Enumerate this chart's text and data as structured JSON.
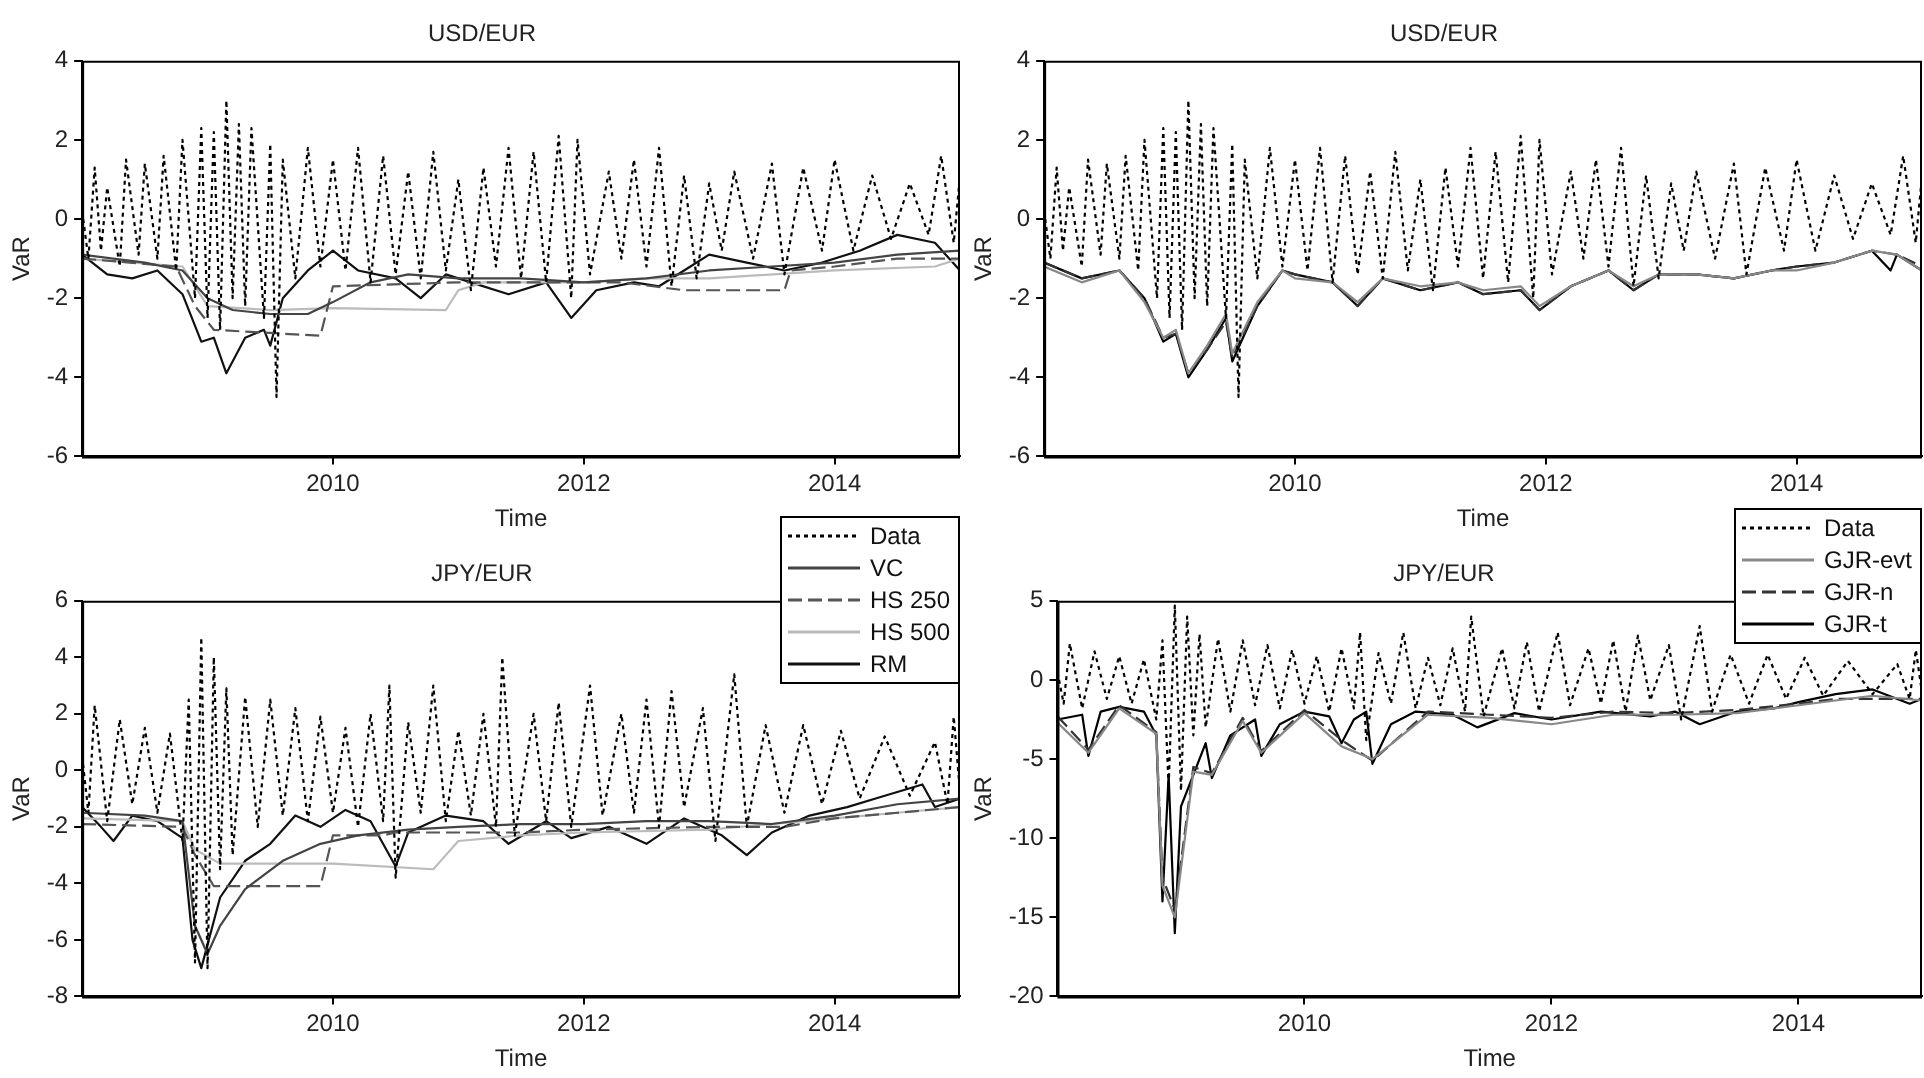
{
  "chart_data": [
    {
      "type": "line",
      "title": "USD/EUR",
      "xlabel": "Time",
      "ylabel": "VaR",
      "xlim": [
        2008,
        2015
      ],
      "xticks": [
        2010,
        2012,
        2014
      ],
      "ylim": [
        -6,
        4
      ],
      "yticks": [
        -6,
        -4,
        -2,
        0,
        2,
        4
      ],
      "grid": false,
      "legend": false,
      "marker": "none",
      "series": [
        {
          "color": "#000000",
          "line_style": "dotted",
          "x": [
            2008.0,
            2008.05,
            2008.1,
            2008.15,
            2008.2,
            2008.3,
            2008.35,
            2008.45,
            2008.5,
            2008.6,
            2008.65,
            2008.75,
            2008.8,
            2008.9,
            2008.95,
            2009.0,
            2009.05,
            2009.1,
            2009.15,
            2009.2,
            2009.25,
            2009.3,
            2009.35,
            2009.45,
            2009.5,
            2009.55,
            2009.6,
            2009.7,
            2009.8,
            2009.9,
            2010.0,
            2010.1,
            2010.2,
            2010.3,
            2010.4,
            2010.5,
            2010.6,
            2010.7,
            2010.8,
            2010.9,
            2011.0,
            2011.1,
            2011.2,
            2011.3,
            2011.4,
            2011.5,
            2011.6,
            2011.7,
            2011.8,
            2011.9,
            2011.95,
            2012.05,
            2012.2,
            2012.3,
            2012.4,
            2012.5,
            2012.6,
            2012.7,
            2012.8,
            2012.9,
            2013.0,
            2013.1,
            2013.2,
            2013.35,
            2013.5,
            2013.6,
            2013.75,
            2013.9,
            2014.0,
            2014.15,
            2014.3,
            2014.45,
            2014.6,
            2014.75,
            2014.85,
            2014.95,
            2015.0
          ],
          "values": [
            0.2,
            -1.0,
            1.3,
            -0.8,
            0.8,
            -1.2,
            1.5,
            -0.9,
            1.4,
            -1.0,
            1.6,
            -1.3,
            2.0,
            -2.0,
            2.3,
            -2.5,
            2.2,
            -2.8,
            3.0,
            -2.0,
            2.4,
            -2.2,
            2.3,
            -2.5,
            1.9,
            -4.5,
            1.5,
            -1.5,
            1.8,
            -1.2,
            1.5,
            -1.3,
            1.8,
            -1.6,
            1.6,
            -1.4,
            1.2,
            -1.5,
            1.7,
            -1.3,
            1.0,
            -1.8,
            1.3,
            -1.2,
            1.8,
            -1.5,
            1.7,
            -1.6,
            2.1,
            -2.0,
            2.0,
            -1.4,
            1.2,
            -1.0,
            1.5,
            -1.2,
            1.8,
            -1.7,
            1.1,
            -1.5,
            0.9,
            -0.8,
            1.2,
            -1.0,
            1.4,
            -1.4,
            1.3,
            -0.8,
            1.5,
            -0.8,
            1.1,
            -0.5,
            0.9,
            -0.4,
            1.6,
            -0.6,
            1.1
          ]
        },
        {
          "color": "#444444",
          "line_style": "solid",
          "x": [
            2008.0,
            2008.5,
            2008.8,
            2009.0,
            2009.2,
            2009.5,
            2009.8,
            2010.0,
            2010.3,
            2010.6,
            2011.0,
            2011.5,
            2012.0,
            2012.5,
            2013.0,
            2013.5,
            2014.0,
            2014.5,
            2015.0
          ],
          "values": [
            -0.9,
            -1.1,
            -1.3,
            -2.0,
            -2.3,
            -2.4,
            -2.4,
            -2.1,
            -1.6,
            -1.4,
            -1.5,
            -1.5,
            -1.6,
            -1.5,
            -1.3,
            -1.2,
            -1.1,
            -0.9,
            -0.8
          ]
        },
        {
          "color": "#555555",
          "line_style": "dashed",
          "x": [
            2008.0,
            2008.75,
            2008.9,
            2009.05,
            2009.9,
            2010.0,
            2011.0,
            2012.3,
            2012.8,
            2013.6,
            2013.65,
            2014.0,
            2014.5,
            2015.0
          ],
          "values": [
            -1.0,
            -1.2,
            -2.2,
            -2.8,
            -2.95,
            -1.7,
            -1.6,
            -1.6,
            -1.8,
            -1.8,
            -1.3,
            -1.2,
            -1.0,
            -1.0
          ]
        },
        {
          "color": "#bbbbbb",
          "line_style": "solid",
          "x": [
            2008.0,
            2008.8,
            2009.0,
            2009.5,
            2010.0,
            2010.9,
            2011.0,
            2011.2,
            2012.0,
            2012.5,
            2013.0,
            2014.0,
            2014.8,
            2015.0
          ],
          "values": [
            -1.0,
            -1.2,
            -2.2,
            -2.3,
            -2.25,
            -2.3,
            -1.8,
            -1.6,
            -1.6,
            -1.5,
            -1.5,
            -1.3,
            -1.2,
            -1.0
          ]
        },
        {
          "color": "#111111",
          "line_style": "solid",
          "x": [
            2008.0,
            2008.2,
            2008.4,
            2008.6,
            2008.8,
            2008.95,
            2009.05,
            2009.15,
            2009.3,
            2009.45,
            2009.5,
            2009.6,
            2009.8,
            2010.0,
            2010.2,
            2010.5,
            2010.7,
            2010.9,
            2011.1,
            2011.4,
            2011.7,
            2011.9,
            2012.1,
            2012.4,
            2012.6,
            2012.8,
            2013.0,
            2013.3,
            2013.6,
            2013.9,
            2014.2,
            2014.5,
            2014.8,
            2015.0
          ],
          "values": [
            -0.9,
            -1.4,
            -1.5,
            -1.3,
            -1.9,
            -3.1,
            -3.0,
            -3.9,
            -3.0,
            -2.8,
            -3.2,
            -2.0,
            -1.3,
            -0.8,
            -1.3,
            -1.5,
            -2.0,
            -1.4,
            -1.6,
            -1.9,
            -1.6,
            -2.5,
            -1.8,
            -1.6,
            -1.7,
            -1.3,
            -0.9,
            -1.1,
            -1.3,
            -1.1,
            -0.8,
            -0.4,
            -0.6,
            -1.3
          ]
        }
      ]
    },
    {
      "type": "line",
      "title": "USD/EUR",
      "xlabel": "Time",
      "ylabel": "VaR",
      "xlim": [
        2008,
        2015
      ],
      "xticks": [
        2010,
        2012,
        2014
      ],
      "ylim": [
        -6,
        4
      ],
      "yticks": [
        -6,
        -4,
        -2,
        0,
        2,
        4
      ],
      "grid": false,
      "legend": false,
      "marker": "none",
      "series": [
        {
          "color": "#000000",
          "line_style": "dotted",
          "x": [
            2008.0,
            2008.05,
            2008.1,
            2008.15,
            2008.2,
            2008.3,
            2008.35,
            2008.45,
            2008.5,
            2008.6,
            2008.65,
            2008.75,
            2008.8,
            2008.9,
            2008.95,
            2009.0,
            2009.05,
            2009.1,
            2009.15,
            2009.2,
            2009.25,
            2009.3,
            2009.35,
            2009.45,
            2009.5,
            2009.55,
            2009.6,
            2009.7,
            2009.8,
            2009.9,
            2010.0,
            2010.1,
            2010.2,
            2010.3,
            2010.4,
            2010.5,
            2010.6,
            2010.7,
            2010.8,
            2010.9,
            2011.0,
            2011.1,
            2011.2,
            2011.3,
            2011.4,
            2011.5,
            2011.6,
            2011.7,
            2011.8,
            2011.9,
            2011.95,
            2012.05,
            2012.2,
            2012.3,
            2012.4,
            2012.5,
            2012.6,
            2012.7,
            2012.8,
            2012.9,
            2013.0,
            2013.1,
            2013.2,
            2013.35,
            2013.5,
            2013.6,
            2013.75,
            2013.9,
            2014.0,
            2014.15,
            2014.3,
            2014.45,
            2014.6,
            2014.75,
            2014.85,
            2014.95,
            2015.0
          ],
          "values": [
            0.2,
            -1.0,
            1.3,
            -0.8,
            0.8,
            -1.2,
            1.5,
            -0.9,
            1.4,
            -1.0,
            1.6,
            -1.3,
            2.0,
            -2.0,
            2.3,
            -2.5,
            2.2,
            -2.8,
            3.0,
            -2.0,
            2.4,
            -2.2,
            2.3,
            -2.5,
            1.9,
            -4.5,
            1.5,
            -1.5,
            1.8,
            -1.2,
            1.5,
            -1.3,
            1.8,
            -1.6,
            1.6,
            -1.4,
            1.2,
            -1.5,
            1.7,
            -1.3,
            1.0,
            -1.8,
            1.3,
            -1.2,
            1.8,
            -1.5,
            1.7,
            -1.6,
            2.1,
            -2.0,
            2.0,
            -1.4,
            1.2,
            -1.0,
            1.5,
            -1.2,
            1.8,
            -1.7,
            1.1,
            -1.5,
            0.9,
            -0.8,
            1.2,
            -1.0,
            1.4,
            -1.4,
            1.3,
            -0.8,
            1.5,
            -0.8,
            1.1,
            -0.5,
            0.9,
            -0.4,
            1.6,
            -0.6,
            1.1
          ]
        },
        {
          "color": "#888888",
          "line_style": "solid",
          "x": [
            2008.0,
            2008.3,
            2008.6,
            2008.8,
            2008.95,
            2009.05,
            2009.15,
            2009.3,
            2009.45,
            2009.5,
            2009.7,
            2009.9,
            2010.0,
            2010.3,
            2010.5,
            2010.7,
            2011.0,
            2011.3,
            2011.5,
            2011.8,
            2011.95,
            2012.2,
            2012.5,
            2012.7,
            2012.9,
            2013.2,
            2013.5,
            2013.8,
            2014.0,
            2014.3,
            2014.6,
            2014.8,
            2015.0
          ],
          "values": [
            -1.2,
            -1.6,
            -1.3,
            -2.1,
            -3.0,
            -2.8,
            -3.9,
            -3.2,
            -2.4,
            -3.4,
            -2.1,
            -1.3,
            -1.5,
            -1.6,
            -2.1,
            -1.5,
            -1.7,
            -1.6,
            -1.8,
            -1.7,
            -2.2,
            -1.7,
            -1.3,
            -1.7,
            -1.4,
            -1.4,
            -1.5,
            -1.3,
            -1.3,
            -1.1,
            -0.8,
            -0.9,
            -1.3
          ]
        },
        {
          "color": "#333333",
          "line_style": "dashed",
          "x": [
            2008.0,
            2008.3,
            2008.6,
            2008.8,
            2008.95,
            2009.05,
            2009.15,
            2009.3,
            2009.45,
            2009.5,
            2009.7,
            2009.9,
            2010.0,
            2010.3,
            2010.5,
            2010.7,
            2011.0,
            2011.3,
            2011.5,
            2011.8,
            2011.95,
            2012.2,
            2012.5,
            2012.7,
            2012.9,
            2013.2,
            2013.5,
            2013.8,
            2014.0,
            2014.3,
            2014.6,
            2014.8,
            2015.0
          ],
          "values": [
            -1.1,
            -1.5,
            -1.3,
            -2.0,
            -3.0,
            -2.9,
            -3.9,
            -3.3,
            -2.6,
            -3.5,
            -2.2,
            -1.3,
            -1.4,
            -1.6,
            -2.2,
            -1.5,
            -1.8,
            -1.6,
            -1.9,
            -1.8,
            -2.3,
            -1.7,
            -1.3,
            -1.8,
            -1.4,
            -1.4,
            -1.5,
            -1.3,
            -1.2,
            -1.1,
            -0.8,
            -0.9,
            -1.2
          ]
        },
        {
          "color": "#000000",
          "line_style": "solid",
          "x": [
            2008.0,
            2008.3,
            2008.6,
            2008.8,
            2008.95,
            2009.05,
            2009.15,
            2009.3,
            2009.45,
            2009.5,
            2009.7,
            2009.9,
            2010.0,
            2010.3,
            2010.5,
            2010.7,
            2011.0,
            2011.3,
            2011.5,
            2011.8,
            2011.95,
            2012.2,
            2012.5,
            2012.7,
            2012.9,
            2013.2,
            2013.5,
            2013.8,
            2014.0,
            2014.3,
            2014.6,
            2014.75,
            2014.8,
            2015.0
          ],
          "values": [
            -1.1,
            -1.5,
            -1.3,
            -2.0,
            -3.1,
            -2.9,
            -4.0,
            -3.3,
            -2.5,
            -3.6,
            -2.2,
            -1.3,
            -1.4,
            -1.6,
            -2.2,
            -1.5,
            -1.8,
            -1.6,
            -1.9,
            -1.8,
            -2.3,
            -1.7,
            -1.3,
            -1.8,
            -1.4,
            -1.4,
            -1.5,
            -1.3,
            -1.2,
            -1.1,
            -0.8,
            -1.3,
            -0.9,
            -1.3
          ]
        }
      ]
    },
    {
      "type": "line",
      "title": "JPY/EUR",
      "xlabel": "Time",
      "ylabel": "VaR",
      "xlim": [
        2008,
        2015
      ],
      "xticks": [
        2010,
        2012,
        2014
      ],
      "ylim": [
        -8,
        6
      ],
      "yticks": [
        -8,
        -6,
        -4,
        -2,
        0,
        2,
        4,
        6
      ],
      "grid": false,
      "legend": "top right",
      "marker": "none",
      "series": [
        {
          "name": "Data",
          "color": "#000000",
          "line_style": "dotted",
          "x": [
            2008.0,
            2008.05,
            2008.1,
            2008.2,
            2008.3,
            2008.4,
            2008.5,
            2008.6,
            2008.7,
            2008.8,
            2008.85,
            2008.9,
            2008.95,
            2009.0,
            2009.05,
            2009.1,
            2009.15,
            2009.2,
            2009.3,
            2009.4,
            2009.5,
            2009.6,
            2009.7,
            2009.8,
            2009.9,
            2010.0,
            2010.1,
            2010.2,
            2010.3,
            2010.4,
            2010.45,
            2010.5,
            2010.6,
            2010.7,
            2010.8,
            2010.9,
            2011.0,
            2011.1,
            2011.2,
            2011.3,
            2011.35,
            2011.45,
            2011.6,
            2011.7,
            2011.8,
            2011.9,
            2012.05,
            2012.15,
            2012.3,
            2012.4,
            2012.5,
            2012.6,
            2012.7,
            2012.8,
            2012.95,
            2013.05,
            2013.2,
            2013.3,
            2013.45,
            2013.6,
            2013.75,
            2013.9,
            2014.05,
            2014.2,
            2014.4,
            2014.6,
            2014.8,
            2014.9,
            2014.95,
            2015.0
          ],
          "values": [
            0.5,
            -1.5,
            2.3,
            -1.8,
            1.8,
            -1.2,
            1.5,
            -1.5,
            1.3,
            -2.5,
            2.5,
            -6.8,
            4.7,
            -7.0,
            4.0,
            -3.5,
            2.9,
            -3.0,
            2.6,
            -2.0,
            2.5,
            -1.6,
            2.2,
            -1.8,
            1.9,
            -1.5,
            1.5,
            -2.0,
            2.0,
            -1.8,
            3.0,
            -3.8,
            1.7,
            -1.5,
            3.0,
            -1.8,
            1.4,
            -1.6,
            2.0,
            -2.0,
            4.0,
            -2.3,
            2.0,
            -1.8,
            2.4,
            -2.0,
            3.0,
            -1.6,
            2.0,
            -1.5,
            2.5,
            -2.0,
            2.8,
            -1.3,
            2.2,
            -2.5,
            3.4,
            -2.0,
            1.6,
            -1.5,
            1.6,
            -1.2,
            1.4,
            -1.0,
            1.2,
            -0.9,
            1.0,
            -1.2,
            1.9,
            -0.8
          ]
        },
        {
          "name": "VC",
          "color": "#444444",
          "line_style": "solid",
          "x": [
            2008.0,
            2008.5,
            2008.8,
            2008.9,
            2009.0,
            2009.1,
            2009.3,
            2009.6,
            2009.9,
            2010.2,
            2010.6,
            2011.0,
            2011.5,
            2012.0,
            2012.5,
            2013.0,
            2013.5,
            2014.0,
            2014.5,
            2015.0
          ],
          "values": [
            -1.5,
            -1.6,
            -1.8,
            -5.5,
            -6.5,
            -5.5,
            -4.2,
            -3.2,
            -2.6,
            -2.3,
            -2.1,
            -2.0,
            -1.9,
            -1.9,
            -1.8,
            -1.8,
            -1.9,
            -1.6,
            -1.2,
            -1.0
          ]
        },
        {
          "name": "HS 250",
          "color": "#555555",
          "line_style": "dashed",
          "x": [
            2008.0,
            2008.8,
            2008.9,
            2009.05,
            2009.9,
            2010.0,
            2010.4,
            2010.5,
            2011.5,
            2012.0,
            2013.0,
            2013.6,
            2014.0,
            2014.5,
            2015.0
          ],
          "values": [
            -1.9,
            -2.0,
            -3.0,
            -4.1,
            -4.1,
            -2.3,
            -2.3,
            -2.2,
            -2.2,
            -2.1,
            -2.0,
            -2.0,
            -1.7,
            -1.5,
            -1.3
          ]
        },
        {
          "name": "HS 500",
          "color": "#bbbbbb",
          "line_style": "solid",
          "x": [
            2008.0,
            2008.8,
            2008.9,
            2009.1,
            2010.0,
            2010.8,
            2010.9,
            2011.0,
            2011.5,
            2012.0,
            2013.0,
            2014.0,
            2014.5,
            2015.0
          ],
          "values": [
            -1.7,
            -1.8,
            -2.8,
            -3.3,
            -3.3,
            -3.5,
            -3.0,
            -2.5,
            -2.3,
            -2.2,
            -2.1,
            -1.7,
            -1.5,
            -1.3
          ]
        },
        {
          "name": "RM",
          "color": "#111111",
          "line_style": "solid",
          "x": [
            2008.0,
            2008.15,
            2008.25,
            2008.4,
            2008.6,
            2008.8,
            2008.88,
            2008.95,
            2009.1,
            2009.3,
            2009.5,
            2009.7,
            2009.9,
            2010.1,
            2010.3,
            2010.5,
            2010.6,
            2010.9,
            2011.2,
            2011.4,
            2011.7,
            2011.9,
            2012.2,
            2012.5,
            2012.8,
            2013.1,
            2013.3,
            2013.5,
            2013.8,
            2014.1,
            2014.4,
            2014.7,
            2014.8,
            2015.0
          ],
          "values": [
            -1.3,
            -2.0,
            -2.5,
            -1.6,
            -1.8,
            -2.4,
            -6.0,
            -7.0,
            -4.5,
            -3.2,
            -2.6,
            -1.6,
            -2.0,
            -1.4,
            -1.8,
            -3.4,
            -2.2,
            -1.6,
            -1.8,
            -2.6,
            -1.8,
            -2.4,
            -2.0,
            -2.6,
            -1.7,
            -2.3,
            -3.0,
            -2.2,
            -1.6,
            -1.3,
            -0.9,
            -0.5,
            -1.3,
            -1.0
          ]
        }
      ]
    },
    {
      "type": "line",
      "title": "JPY/EUR",
      "xlabel": "Time",
      "ylabel": "VaR",
      "xlim": [
        2008,
        2015
      ],
      "xticks": [
        2010,
        2012,
        2014
      ],
      "ylim": [
        -20,
        5
      ],
      "yticks": [
        -20,
        -15,
        -10,
        -5,
        0,
        5
      ],
      "grid": false,
      "legend": "top right",
      "marker": "none",
      "series": [
        {
          "name": "Data",
          "color": "#000000",
          "line_style": "dotted",
          "x": [
            2008.0,
            2008.05,
            2008.1,
            2008.2,
            2008.3,
            2008.4,
            2008.5,
            2008.6,
            2008.7,
            2008.8,
            2008.85,
            2008.9,
            2008.95,
            2009.0,
            2009.05,
            2009.1,
            2009.15,
            2009.2,
            2009.3,
            2009.4,
            2009.5,
            2009.6,
            2009.7,
            2009.8,
            2009.9,
            2010.0,
            2010.1,
            2010.2,
            2010.3,
            2010.4,
            2010.45,
            2010.5,
            2010.6,
            2010.7,
            2010.8,
            2010.9,
            2011.0,
            2011.1,
            2011.2,
            2011.3,
            2011.35,
            2011.45,
            2011.6,
            2011.7,
            2011.8,
            2011.9,
            2012.05,
            2012.15,
            2012.3,
            2012.4,
            2012.5,
            2012.6,
            2012.7,
            2012.8,
            2012.95,
            2013.05,
            2013.2,
            2013.3,
            2013.45,
            2013.6,
            2013.75,
            2013.9,
            2014.05,
            2014.2,
            2014.4,
            2014.6,
            2014.8,
            2014.9,
            2014.95,
            2015.0
          ],
          "values": [
            0.5,
            -1.5,
            2.3,
            -1.8,
            1.8,
            -1.2,
            1.5,
            -1.5,
            1.3,
            -2.5,
            2.5,
            -6.8,
            4.7,
            -7.0,
            4.0,
            -3.5,
            2.9,
            -3.0,
            2.6,
            -2.0,
            2.5,
            -1.6,
            2.2,
            -1.8,
            1.9,
            -1.5,
            1.5,
            -2.0,
            2.0,
            -1.8,
            3.0,
            -3.8,
            1.7,
            -1.5,
            3.0,
            -1.8,
            1.4,
            -1.6,
            2.0,
            -2.0,
            4.0,
            -2.3,
            2.0,
            -1.8,
            2.4,
            -2.0,
            3.0,
            -1.6,
            2.0,
            -1.5,
            2.5,
            -2.0,
            2.8,
            -1.3,
            2.2,
            -2.5,
            3.4,
            -2.0,
            1.6,
            -1.5,
            1.6,
            -1.2,
            1.4,
            -1.0,
            1.2,
            -0.9,
            1.0,
            -1.2,
            1.9,
            -0.8
          ]
        },
        {
          "name": "GJR-evt",
          "color": "#888888",
          "line_style": "solid",
          "x": [
            2008.0,
            2008.25,
            2008.5,
            2008.8,
            2008.85,
            2008.95,
            2009.1,
            2009.25,
            2009.5,
            2009.65,
            2010.0,
            2010.3,
            2010.55,
            2011.0,
            2011.5,
            2012.0,
            2012.5,
            2013.0,
            2013.5,
            2014.0,
            2014.3,
            2014.6,
            2015.0
          ],
          "values": [
            -2.7,
            -4.6,
            -1.8,
            -3.4,
            -13.0,
            -15.0,
            -5.8,
            -6.0,
            -2.6,
            -4.6,
            -2.1,
            -4.2,
            -5.0,
            -2.2,
            -2.4,
            -2.8,
            -2.2,
            -2.2,
            -2.1,
            -1.6,
            -1.3,
            -1.0,
            -1.3
          ]
        },
        {
          "name": "GJR-n",
          "color": "#333333",
          "line_style": "dashed",
          "x": [
            2008.0,
            2008.25,
            2008.5,
            2008.8,
            2008.85,
            2008.95,
            2009.1,
            2009.25,
            2009.5,
            2009.65,
            2010.0,
            2010.3,
            2010.55,
            2011.0,
            2011.5,
            2012.0,
            2012.5,
            2013.0,
            2013.5,
            2014.0,
            2014.3,
            2014.6,
            2015.0
          ],
          "values": [
            -2.3,
            -4.4,
            -1.6,
            -3.3,
            -12.5,
            -14.5,
            -5.5,
            -5.9,
            -2.4,
            -4.5,
            -1.9,
            -3.8,
            -5.1,
            -2.0,
            -2.2,
            -2.4,
            -2.0,
            -2.1,
            -1.9,
            -1.5,
            -1.2,
            -1.2,
            -1.2
          ]
        },
        {
          "name": "GJR-t",
          "color": "#000000",
          "line_style": "solid",
          "x": [
            2008.0,
            2008.2,
            2008.25,
            2008.35,
            2008.5,
            2008.7,
            2008.8,
            2008.85,
            2008.9,
            2008.95,
            2009.0,
            2009.1,
            2009.2,
            2009.25,
            2009.4,
            2009.6,
            2009.65,
            2009.8,
            2010.0,
            2010.2,
            2010.3,
            2010.4,
            2010.5,
            2010.55,
            2010.7,
            2010.9,
            2011.2,
            2011.4,
            2011.7,
            2012.0,
            2012.4,
            2012.8,
            2013.0,
            2013.2,
            2013.5,
            2013.8,
            2014.0,
            2014.3,
            2014.6,
            2014.9,
            2015.0
          ],
          "values": [
            -2.5,
            -2.2,
            -4.8,
            -2.0,
            -1.7,
            -2.0,
            -3.5,
            -14.0,
            -6.0,
            -16.0,
            -8.0,
            -6.0,
            -4.0,
            -6.2,
            -3.5,
            -2.5,
            -4.8,
            -2.8,
            -2.0,
            -2.3,
            -4.0,
            -2.5,
            -2.0,
            -5.3,
            -2.8,
            -2.0,
            -2.2,
            -3.0,
            -2.1,
            -2.5,
            -2.0,
            -2.3,
            -2.0,
            -2.8,
            -2.0,
            -1.8,
            -1.4,
            -0.9,
            -0.6,
            -1.5,
            -1.2
          ]
        }
      ]
    }
  ]
}
